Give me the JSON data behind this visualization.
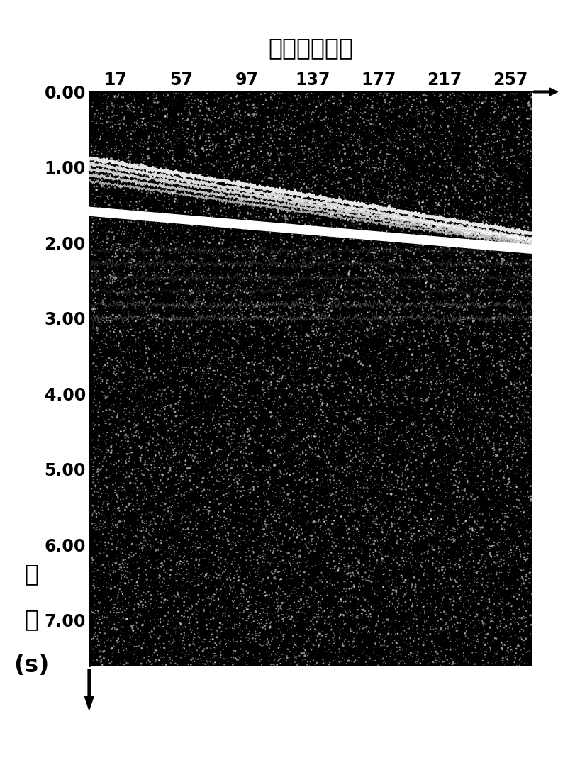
{
  "title": "共深度点序号",
  "ylabel_chars": [
    "时",
    "间",
    "(s)"
  ],
  "xtick_labels": [
    "17",
    "57",
    "97",
    "137",
    "177",
    "217",
    "257"
  ],
  "xtick_positions": [
    17,
    57,
    97,
    137,
    177,
    217,
    257
  ],
  "x_min": 1,
  "x_max": 270,
  "y_min": 0.0,
  "y_max": 7.6,
  "ytick_positions": [
    0.0,
    1.0,
    2.0,
    3.0,
    4.0,
    5.0,
    6.0,
    7.0
  ],
  "ytick_labels": [
    "0.00",
    "1.00",
    "2.00",
    "3.00",
    "4.00",
    "5.00",
    "6.00",
    "7.00"
  ],
  "bg_color": "#000000",
  "text_color": "#000000",
  "fig_bg": "#ffffff",
  "title_fontsize": 24,
  "tick_fontsize": 17,
  "ylabel_fontsize": 24,
  "seed": 42
}
